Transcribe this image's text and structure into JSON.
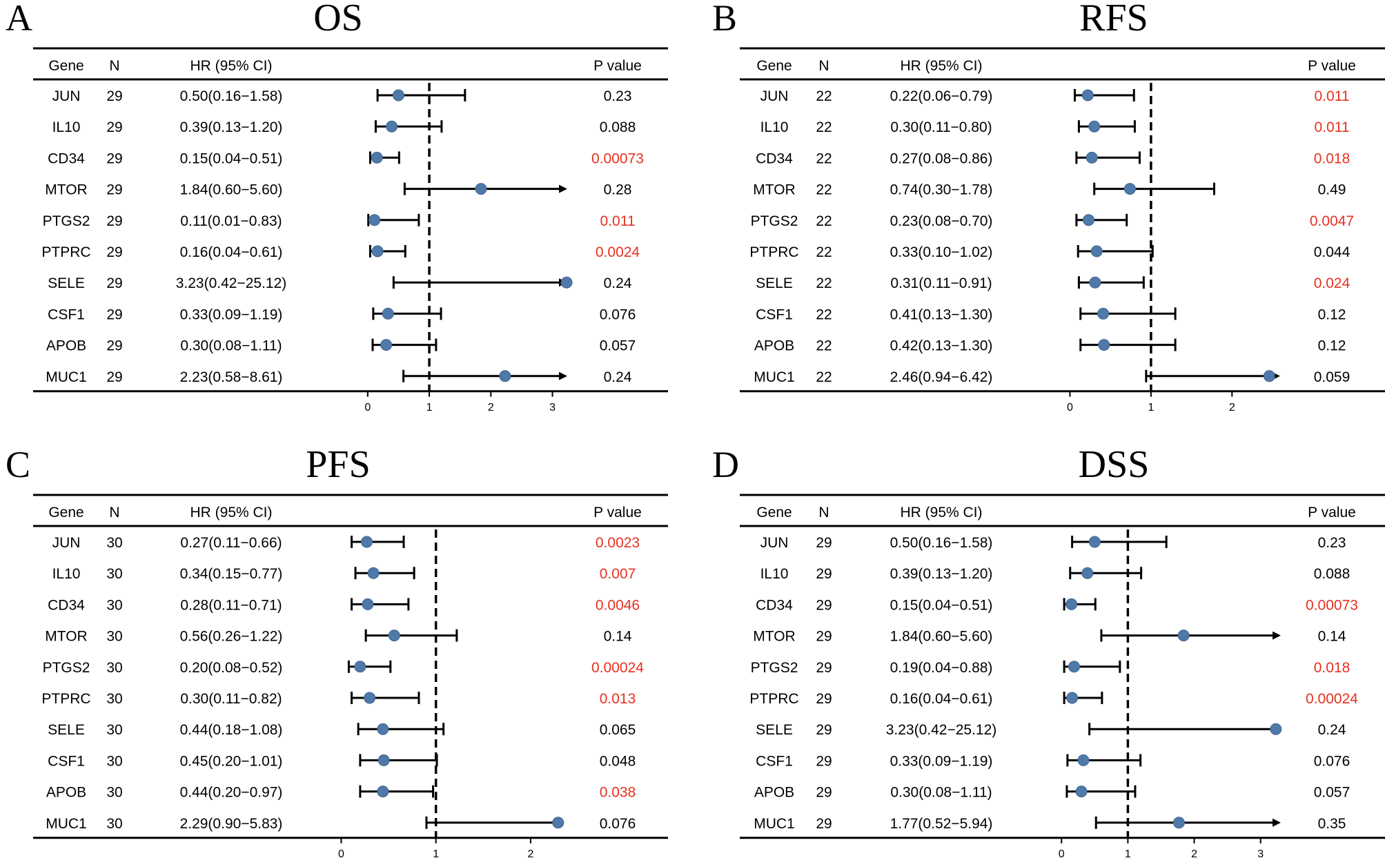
{
  "chart_data": [
    {
      "type": "forest",
      "panel": "A",
      "title": "OS",
      "headers": {
        "gene": "Gene",
        "n": "N",
        "hr": "HR (95% CI)",
        "p": "P value"
      },
      "x_ticks": [
        0,
        1,
        2,
        3
      ],
      "x_range": [
        -0.2,
        3.7
      ],
      "reference_line": 1,
      "rows": [
        {
          "gene": "JUN",
          "n": "29",
          "hr_text": "0.50(0.16−1.58)",
          "hr": 0.5,
          "lo": 0.16,
          "hi": 1.58,
          "p": "0.23",
          "significant": false
        },
        {
          "gene": "IL10",
          "n": "29",
          "hr_text": "0.39(0.13−1.20)",
          "hr": 0.39,
          "lo": 0.13,
          "hi": 1.2,
          "p": "0.088",
          "significant": false
        },
        {
          "gene": "CD34",
          "n": "29",
          "hr_text": "0.15(0.04−0.51)",
          "hr": 0.15,
          "lo": 0.04,
          "hi": 0.51,
          "p": "0.00073",
          "significant": true
        },
        {
          "gene": "MTOR",
          "n": "29",
          "hr_text": "1.84(0.60−5.60)",
          "hr": 1.84,
          "lo": 0.6,
          "hi": 5.6,
          "p": "0.28",
          "significant": false
        },
        {
          "gene": "PTGS2",
          "n": "29",
          "hr_text": "0.11(0.01−0.83)",
          "hr": 0.11,
          "lo": 0.01,
          "hi": 0.83,
          "p": "0.011",
          "significant": true
        },
        {
          "gene": "PTPRC",
          "n": "29",
          "hr_text": "0.16(0.04−0.61)",
          "hr": 0.16,
          "lo": 0.04,
          "hi": 0.61,
          "p": "0.0024",
          "significant": true
        },
        {
          "gene": "SELE",
          "n": "29",
          "hr_text": "3.23(0.42−25.12)",
          "hr": 3.23,
          "lo": 0.42,
          "hi": 25.12,
          "p": "0.24",
          "significant": false
        },
        {
          "gene": "CSF1",
          "n": "29",
          "hr_text": "0.33(0.09−1.19)",
          "hr": 0.33,
          "lo": 0.09,
          "hi": 1.19,
          "p": "0.076",
          "significant": false
        },
        {
          "gene": "APOB",
          "n": "29",
          "hr_text": "0.30(0.08−1.11)",
          "hr": 0.3,
          "lo": 0.08,
          "hi": 1.11,
          "p": "0.057",
          "significant": false
        },
        {
          "gene": "MUC1",
          "n": "29",
          "hr_text": "2.23(0.58−8.61)",
          "hr": 2.23,
          "lo": 0.58,
          "hi": 8.61,
          "p": "0.24",
          "significant": false
        }
      ]
    },
    {
      "type": "forest",
      "panel": "B",
      "title": "RFS",
      "headers": {
        "gene": "Gene",
        "n": "N",
        "hr": "HR (95% CI)",
        "p": "P value"
      },
      "x_ticks": [
        0,
        1,
        2
      ],
      "x_range": [
        -0.2,
        2.9
      ],
      "reference_line": 1,
      "rows": [
        {
          "gene": "JUN",
          "n": "22",
          "hr_text": "0.22(0.06−0.79)",
          "hr": 0.22,
          "lo": 0.06,
          "hi": 0.79,
          "p": "0.011",
          "significant": true
        },
        {
          "gene": "IL10",
          "n": "22",
          "hr_text": "0.30(0.11−0.80)",
          "hr": 0.3,
          "lo": 0.11,
          "hi": 0.8,
          "p": "0.011",
          "significant": true
        },
        {
          "gene": "CD34",
          "n": "22",
          "hr_text": "0.27(0.08−0.86)",
          "hr": 0.27,
          "lo": 0.08,
          "hi": 0.86,
          "p": "0.018",
          "significant": true
        },
        {
          "gene": "MTOR",
          "n": "22",
          "hr_text": "0.74(0.30−1.78)",
          "hr": 0.74,
          "lo": 0.3,
          "hi": 1.78,
          "p": "0.49",
          "significant": false
        },
        {
          "gene": "PTGS2",
          "n": "22",
          "hr_text": "0.23(0.08−0.70)",
          "hr": 0.23,
          "lo": 0.08,
          "hi": 0.7,
          "p": "0.0047",
          "significant": true
        },
        {
          "gene": "PTPRC",
          "n": "22",
          "hr_text": "0.33(0.10−1.02)",
          "hr": 0.33,
          "lo": 0.1,
          "hi": 1.02,
          "p": "0.044",
          "significant": false
        },
        {
          "gene": "SELE",
          "n": "22",
          "hr_text": "0.31(0.11−0.91)",
          "hr": 0.31,
          "lo": 0.11,
          "hi": 0.91,
          "p": "0.024",
          "significant": true
        },
        {
          "gene": "CSF1",
          "n": "22",
          "hr_text": "0.41(0.13−1.30)",
          "hr": 0.41,
          "lo": 0.13,
          "hi": 1.3,
          "p": "0.12",
          "significant": false
        },
        {
          "gene": "APOB",
          "n": "22",
          "hr_text": "0.42(0.13−1.30)",
          "hr": 0.42,
          "lo": 0.13,
          "hi": 1.3,
          "p": "0.12",
          "significant": false
        },
        {
          "gene": "MUC1",
          "n": "22",
          "hr_text": "2.46(0.94−6.42)",
          "hr": 2.46,
          "lo": 0.94,
          "hi": 6.42,
          "p": "0.059",
          "significant": false
        }
      ]
    },
    {
      "type": "forest",
      "panel": "C",
      "title": "PFS",
      "headers": {
        "gene": "Gene",
        "n": "N",
        "hr": "HR (95% CI)",
        "p": "P value"
      },
      "x_ticks": [
        0,
        1,
        2
      ],
      "x_range": [
        -0.2,
        2.7
      ],
      "reference_line": 1,
      "rows": [
        {
          "gene": "JUN",
          "n": "30",
          "hr_text": "0.27(0.11−0.66)",
          "hr": 0.27,
          "lo": 0.11,
          "hi": 0.66,
          "p": "0.0023",
          "significant": true
        },
        {
          "gene": "IL10",
          "n": "30",
          "hr_text": "0.34(0.15−0.77)",
          "hr": 0.34,
          "lo": 0.15,
          "hi": 0.77,
          "p": "0.007",
          "significant": true
        },
        {
          "gene": "CD34",
          "n": "30",
          "hr_text": "0.28(0.11−0.71)",
          "hr": 0.28,
          "lo": 0.11,
          "hi": 0.71,
          "p": "0.0046",
          "significant": true
        },
        {
          "gene": "MTOR",
          "n": "30",
          "hr_text": "0.56(0.26−1.22)",
          "hr": 0.56,
          "lo": 0.26,
          "hi": 1.22,
          "p": "0.14",
          "significant": false
        },
        {
          "gene": "PTGS2",
          "n": "30",
          "hr_text": "0.20(0.08−0.52)",
          "hr": 0.2,
          "lo": 0.08,
          "hi": 0.52,
          "p": "0.00024",
          "significant": true
        },
        {
          "gene": "PTPRC",
          "n": "30",
          "hr_text": "0.30(0.11−0.82)",
          "hr": 0.3,
          "lo": 0.11,
          "hi": 0.82,
          "p": "0.013",
          "significant": true
        },
        {
          "gene": "SELE",
          "n": "30",
          "hr_text": "0.44(0.18−1.08)",
          "hr": 0.44,
          "lo": 0.18,
          "hi": 1.08,
          "p": "0.065",
          "significant": false
        },
        {
          "gene": "CSF1",
          "n": "30",
          "hr_text": "0.45(0.20−1.01)",
          "hr": 0.45,
          "lo": 0.2,
          "hi": 1.01,
          "p": "0.048",
          "significant": false
        },
        {
          "gene": "APOB",
          "n": "30",
          "hr_text": "0.44(0.20−0.97)",
          "hr": 0.44,
          "lo": 0.2,
          "hi": 0.97,
          "p": "0.038",
          "significant": true
        },
        {
          "gene": "MUC1",
          "n": "30",
          "hr_text": "2.29(0.90−5.83)",
          "hr": 2.29,
          "lo": 0.9,
          "hi": 5.83,
          "p": "0.076",
          "significant": false
        }
      ]
    },
    {
      "type": "forest",
      "panel": "D",
      "title": "DSS",
      "headers": {
        "gene": "Gene",
        "n": "N",
        "hr": "HR (95% CI)",
        "p": "P value"
      },
      "x_ticks": [
        0,
        1,
        2,
        3
      ],
      "x_range": [
        -0.2,
        3.7
      ],
      "reference_line": 1,
      "rows": [
        {
          "gene": "JUN",
          "n": "29",
          "hr_text": "0.50(0.16−1.58)",
          "hr": 0.5,
          "lo": 0.16,
          "hi": 1.58,
          "p": "0.23",
          "significant": false
        },
        {
          "gene": "IL10",
          "n": "29",
          "hr_text": "0.39(0.13−1.20)",
          "hr": 0.39,
          "lo": 0.13,
          "hi": 1.2,
          "p": "0.088",
          "significant": false
        },
        {
          "gene": "CD34",
          "n": "29",
          "hr_text": "0.15(0.04−0.51)",
          "hr": 0.15,
          "lo": 0.04,
          "hi": 0.51,
          "p": "0.00073",
          "significant": true
        },
        {
          "gene": "MTOR",
          "n": "29",
          "hr_text": "1.84(0.60−5.60)",
          "hr": 1.84,
          "lo": 0.6,
          "hi": 5.6,
          "p": "0.14",
          "significant": false
        },
        {
          "gene": "PTGS2",
          "n": "29",
          "hr_text": "0.19(0.04−0.88)",
          "hr": 0.19,
          "lo": 0.04,
          "hi": 0.88,
          "p": "0.018",
          "significant": true
        },
        {
          "gene": "PTPRC",
          "n": "29",
          "hr_text": "0.16(0.04−0.61)",
          "hr": 0.16,
          "lo": 0.04,
          "hi": 0.61,
          "p": "0.00024",
          "significant": true
        },
        {
          "gene": "SELE",
          "n": "29",
          "hr_text": "3.23(0.42−25.12)",
          "hr": 3.23,
          "lo": 0.42,
          "hi": 25.12,
          "p": "0.24",
          "significant": false
        },
        {
          "gene": "CSF1",
          "n": "29",
          "hr_text": "0.33(0.09−1.19)",
          "hr": 0.33,
          "lo": 0.09,
          "hi": 1.19,
          "p": "0.076",
          "significant": false
        },
        {
          "gene": "APOB",
          "n": "29",
          "hr_text": "0.30(0.08−1.11)",
          "hr": 0.3,
          "lo": 0.08,
          "hi": 1.11,
          "p": "0.057",
          "significant": false
        },
        {
          "gene": "MUC1",
          "n": "29",
          "hr_text": "1.77(0.52−5.94)",
          "hr": 1.77,
          "lo": 0.52,
          "hi": 5.94,
          "p": "0.35",
          "significant": false
        }
      ]
    }
  ],
  "colors": {
    "point": "#4f79a8",
    "point_stroke": "#3e6591",
    "significant_p": "#e8301f",
    "text": "#000000",
    "line": "#000000"
  }
}
